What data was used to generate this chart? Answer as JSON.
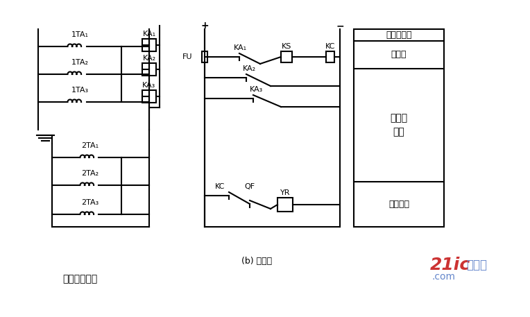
{
  "bg_color": "#ffffff",
  "line_color": "#000000",
  "line_width": 1.5,
  "fig_width": 7.64,
  "fig_height": 4.57,
  "label_ac_circuit": "交流电流回路",
  "label_b_title": "(b) 展开图",
  "label_control_bus": "控制小母线",
  "label_fuse": "熔断器",
  "label_diff_prot": "纵差动\n保护",
  "label_trip": "跳闸回路",
  "watermark_text": "21ic",
  "watermark_sub": "电子网",
  "watermark_sub2": ".com"
}
